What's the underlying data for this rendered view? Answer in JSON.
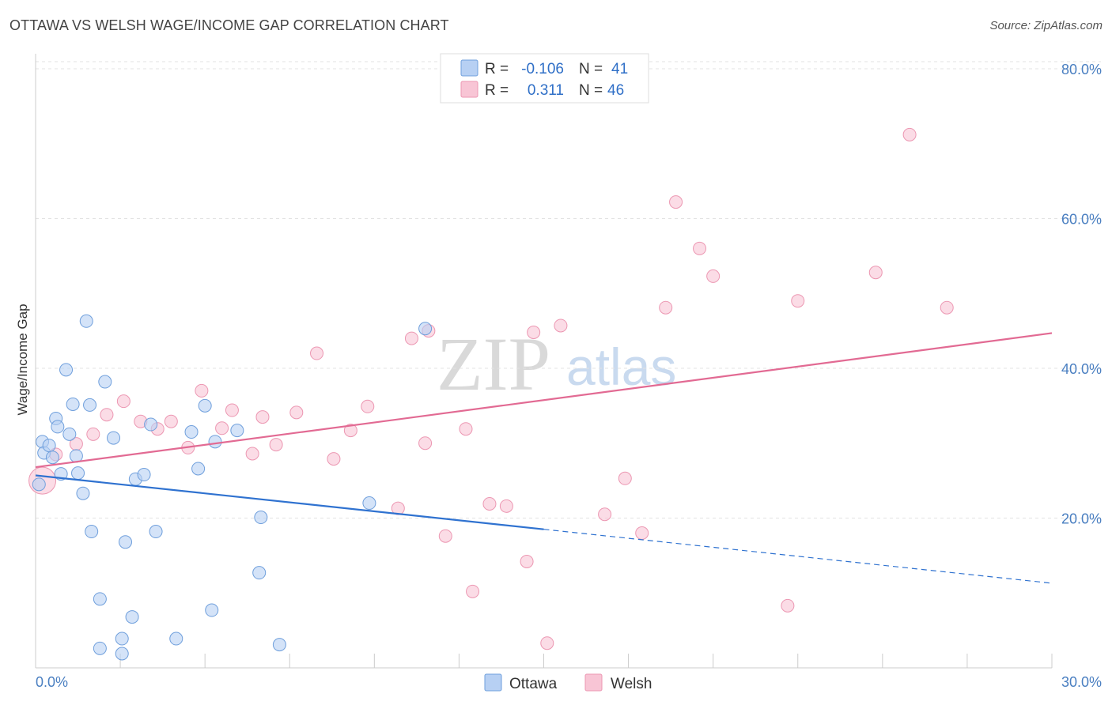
{
  "title": "OTTAWA VS WELSH WAGE/INCOME GAP CORRELATION CHART",
  "source": "Source: ZipAtlas.com",
  "watermark": {
    "zip": "ZIP",
    "atlas": "atlas"
  },
  "colors": {
    "ottawa_fill": "#b7d0f3",
    "ottawa_stroke": "#6f9fdc",
    "ottawa_line": "#2f72d0",
    "welsh_fill": "#f8c5d5",
    "welsh_stroke": "#ec97b2",
    "welsh_line": "#e26a93",
    "tick_text": "#4a7fc1"
  },
  "legend": {
    "rows": [
      {
        "r_label": "R =",
        "r_value": "-0.106",
        "n_label": "N =",
        "n_value": "41"
      },
      {
        "r_label": "R =",
        "r_value": "0.311",
        "n_label": "N =",
        "n_value": "46"
      }
    ]
  },
  "bottom_legend": [
    "Ottawa",
    "Welsh"
  ],
  "chart_data": {
    "type": "scatter",
    "title": "OTTAWA VS WELSH WAGE/INCOME GAP CORRELATION CHART",
    "xlabel": "",
    "ylabel": "Wage/Income Gap",
    "xlim": [
      0,
      30
    ],
    "ylim": [
      0,
      82
    ],
    "x_tick_labels": [
      "0.0%",
      "30.0%"
    ],
    "y_ticks": [
      20,
      40,
      60,
      80
    ],
    "y_tick_labels": [
      "20.0%",
      "40.0%",
      "60.0%",
      "80.0%"
    ],
    "grid": true,
    "legend_position": "top-center",
    "series": [
      {
        "name": "Ottawa",
        "r": -0.106,
        "n": 41,
        "points": [
          [
            0.1,
            24.5
          ],
          [
            0.2,
            30.2
          ],
          [
            0.25,
            28.7
          ],
          [
            0.4,
            29.7
          ],
          [
            0.5,
            28.1
          ],
          [
            0.6,
            33.3
          ],
          [
            0.65,
            32.2
          ],
          [
            0.75,
            25.9
          ],
          [
            0.9,
            39.8
          ],
          [
            1.0,
            31.2
          ],
          [
            1.1,
            35.2
          ],
          [
            1.2,
            28.3
          ],
          [
            1.25,
            26.0
          ],
          [
            1.4,
            23.3
          ],
          [
            1.5,
            46.3
          ],
          [
            1.6,
            35.1
          ],
          [
            1.65,
            18.2
          ],
          [
            1.9,
            9.2
          ],
          [
            1.9,
            2.6
          ],
          [
            2.05,
            38.2
          ],
          [
            2.3,
            30.7
          ],
          [
            2.55,
            3.9
          ],
          [
            2.55,
            1.9
          ],
          [
            2.65,
            16.8
          ],
          [
            2.85,
            6.8
          ],
          [
            2.95,
            25.2
          ],
          [
            3.2,
            25.8
          ],
          [
            3.4,
            32.5
          ],
          [
            3.55,
            18.2
          ],
          [
            4.15,
            3.9
          ],
          [
            4.6,
            31.5
          ],
          [
            4.8,
            26.6
          ],
          [
            5.0,
            35.0
          ],
          [
            5.2,
            7.7
          ],
          [
            5.3,
            30.2
          ],
          [
            5.95,
            31.7
          ],
          [
            6.6,
            12.7
          ],
          [
            6.65,
            20.1
          ],
          [
            7.2,
            3.1
          ],
          [
            9.85,
            22.0
          ],
          [
            11.5,
            45.3
          ]
        ]
      },
      {
        "name": "Welsh",
        "r": 0.311,
        "n": 46,
        "points": [
          [
            0.2,
            25.0
          ],
          [
            0.6,
            28.5
          ],
          [
            1.2,
            29.9
          ],
          [
            1.7,
            31.2
          ],
          [
            2.1,
            33.8
          ],
          [
            2.6,
            35.6
          ],
          [
            3.1,
            32.9
          ],
          [
            3.6,
            31.9
          ],
          [
            4.0,
            32.9
          ],
          [
            4.5,
            29.4
          ],
          [
            4.9,
            37.0
          ],
          [
            5.5,
            32.0
          ],
          [
            5.8,
            34.4
          ],
          [
            6.4,
            28.6
          ],
          [
            6.7,
            33.5
          ],
          [
            7.1,
            29.8
          ],
          [
            7.7,
            34.1
          ],
          [
            8.3,
            42.0
          ],
          [
            8.8,
            27.9
          ],
          [
            9.3,
            31.7
          ],
          [
            9.8,
            34.9
          ],
          [
            10.7,
            21.3
          ],
          [
            11.1,
            44.0
          ],
          [
            11.5,
            30.0
          ],
          [
            11.6,
            45.0
          ],
          [
            12.1,
            17.6
          ],
          [
            12.7,
            31.9
          ],
          [
            12.9,
            10.2
          ],
          [
            13.4,
            21.9
          ],
          [
            13.9,
            21.6
          ],
          [
            14.5,
            14.2
          ],
          [
            14.7,
            44.8
          ],
          [
            15.1,
            3.3
          ],
          [
            15.5,
            45.7
          ],
          [
            16.8,
            20.5
          ],
          [
            17.4,
            25.3
          ],
          [
            17.9,
            18.0
          ],
          [
            18.6,
            48.1
          ],
          [
            18.9,
            62.2
          ],
          [
            19.6,
            56.0
          ],
          [
            20.0,
            52.3
          ],
          [
            22.2,
            8.3
          ],
          [
            22.5,
            49.0
          ],
          [
            24.8,
            52.8
          ],
          [
            25.8,
            71.2
          ],
          [
            26.9,
            48.1
          ]
        ]
      }
    ],
    "trend_lines": [
      {
        "name": "Ottawa",
        "solid_x": [
          0,
          15
        ],
        "y_at_0": 25.7,
        "y_at_30": 11.3,
        "dashed_x": [
          15,
          30
        ]
      },
      {
        "name": "Welsh",
        "solid_x": [
          0,
          30
        ],
        "y_at_0": 26.8,
        "y_at_30": 44.7
      }
    ]
  }
}
